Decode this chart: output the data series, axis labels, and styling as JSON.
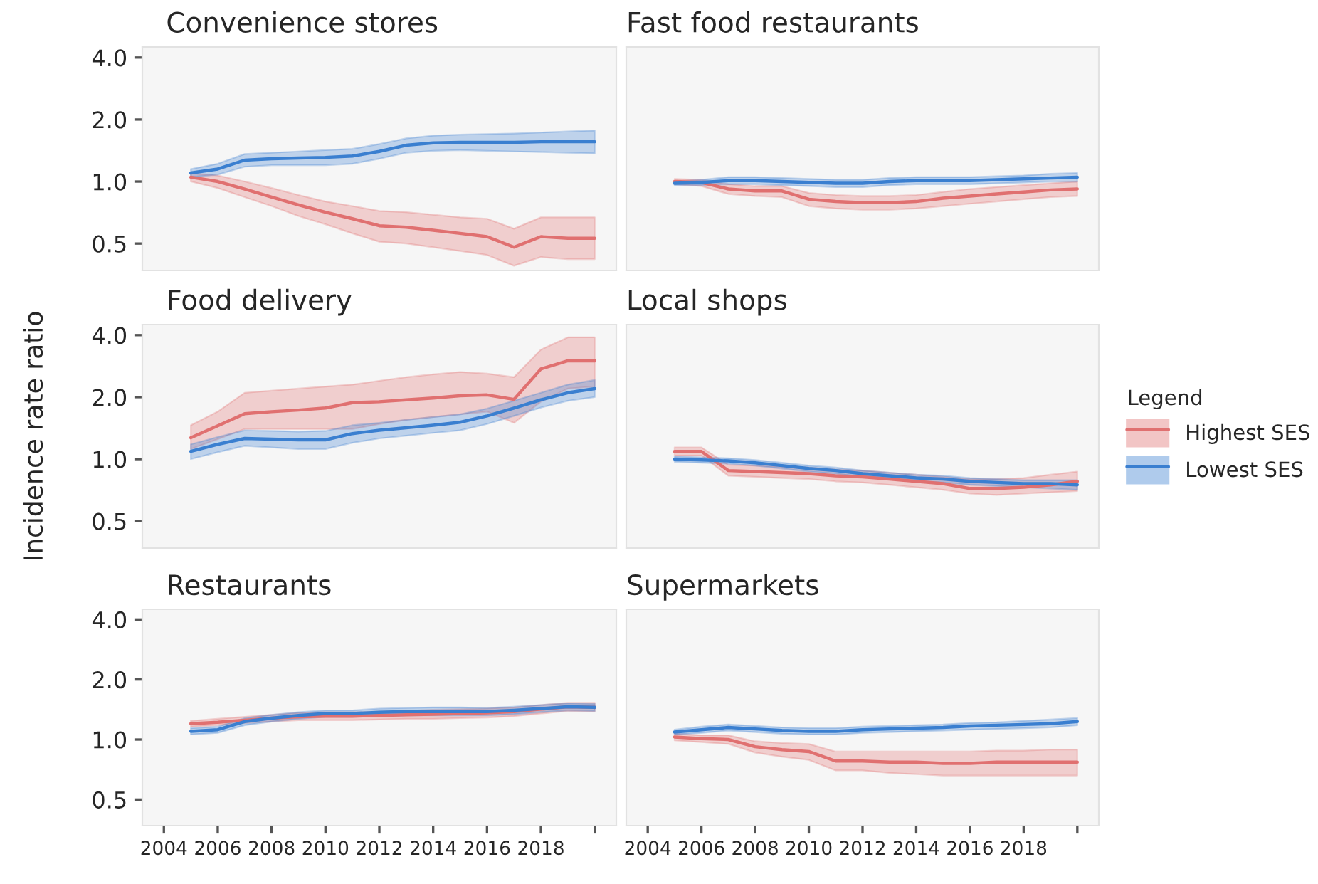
{
  "chart_data": [
    {
      "type": "line",
      "title": "Convenience stores",
      "x": [
        2005,
        2006,
        2007,
        2008,
        2009,
        2010,
        2011,
        2012,
        2013,
        2014,
        2015,
        2016,
        2017,
        2018,
        2019,
        2020
      ],
      "xlim": [
        2003.2,
        2020.8
      ],
      "ylim": [
        0.37,
        4.5
      ],
      "yticks": [
        {
          "value": 0.5,
          "label": "0.5"
        },
        {
          "value": 1,
          "label": "1.0"
        },
        {
          "value": 2,
          "label": "2.0"
        },
        {
          "value": 4,
          "label": "4.0"
        }
      ],
      "log": "y",
      "tick_labels": "y",
      "series": [
        {
          "color": "#e07070",
          "values": [
            1.05,
            1.0,
            0.92,
            0.84,
            0.77,
            0.71,
            0.66,
            0.61,
            0.6,
            0.58,
            0.56,
            0.54,
            0.48,
            0.54,
            0.53,
            0.53
          ],
          "lower": [
            1.0,
            0.93,
            0.84,
            0.76,
            0.68,
            0.62,
            0.56,
            0.51,
            0.5,
            0.48,
            0.46,
            0.44,
            0.39,
            0.43,
            0.42,
            0.42
          ],
          "upper": [
            1.1,
            1.07,
            1.0,
            0.93,
            0.86,
            0.8,
            0.76,
            0.72,
            0.71,
            0.69,
            0.67,
            0.66,
            0.59,
            0.67,
            0.67,
            0.67
          ]
        },
        {
          "color": "#3a7fd0",
          "values": [
            1.1,
            1.15,
            1.27,
            1.29,
            1.3,
            1.31,
            1.33,
            1.4,
            1.5,
            1.54,
            1.55,
            1.55,
            1.55,
            1.56,
            1.56,
            1.56
          ],
          "lower": [
            1.05,
            1.08,
            1.18,
            1.2,
            1.2,
            1.2,
            1.22,
            1.29,
            1.38,
            1.41,
            1.42,
            1.41,
            1.4,
            1.39,
            1.38,
            1.37
          ],
          "upper": [
            1.15,
            1.22,
            1.36,
            1.38,
            1.4,
            1.42,
            1.44,
            1.52,
            1.62,
            1.67,
            1.69,
            1.7,
            1.71,
            1.73,
            1.75,
            1.77
          ]
        }
      ]
    },
    {
      "type": "line",
      "title": "Fast food restaurants",
      "x": [
        2005,
        2006,
        2007,
        2008,
        2009,
        2010,
        2011,
        2012,
        2013,
        2014,
        2015,
        2016,
        2017,
        2018,
        2019,
        2020
      ],
      "xlim": [
        2003.2,
        2020.8
      ],
      "ylim": [
        0.37,
        4.5
      ],
      "log": "y",
      "tick_labels": false,
      "series": [
        {
          "color": "#e07070",
          "values": [
            1.0,
            0.99,
            0.92,
            0.9,
            0.9,
            0.82,
            0.8,
            0.79,
            0.79,
            0.8,
            0.83,
            0.85,
            0.87,
            0.89,
            0.91,
            0.92
          ],
          "lower": [
            0.97,
            0.95,
            0.87,
            0.85,
            0.84,
            0.76,
            0.74,
            0.73,
            0.73,
            0.74,
            0.76,
            0.78,
            0.8,
            0.82,
            0.84,
            0.85
          ],
          "upper": [
            1.03,
            1.02,
            0.97,
            0.95,
            0.95,
            0.88,
            0.86,
            0.85,
            0.85,
            0.86,
            0.89,
            0.92,
            0.94,
            0.96,
            0.98,
            1.0
          ]
        },
        {
          "color": "#3a7fd0",
          "values": [
            0.98,
            0.99,
            1.01,
            1.01,
            1.0,
            0.99,
            0.98,
            0.98,
            1.0,
            1.01,
            1.01,
            1.01,
            1.02,
            1.03,
            1.04,
            1.05
          ],
          "lower": [
            0.96,
            0.96,
            0.97,
            0.97,
            0.96,
            0.95,
            0.94,
            0.94,
            0.96,
            0.97,
            0.97,
            0.97,
            0.98,
            0.99,
            1.0,
            1.0
          ],
          "upper": [
            1.0,
            1.02,
            1.05,
            1.05,
            1.04,
            1.03,
            1.02,
            1.02,
            1.04,
            1.05,
            1.05,
            1.05,
            1.06,
            1.07,
            1.09,
            1.1
          ]
        }
      ]
    },
    {
      "type": "line",
      "title": "Food delivery",
      "ylabel": "Incidence rate ratio",
      "x": [
        2005,
        2006,
        2007,
        2008,
        2009,
        2010,
        2011,
        2012,
        2013,
        2014,
        2015,
        2016,
        2017,
        2018,
        2019,
        2020
      ],
      "xlim": [
        2003.2,
        2020.8
      ],
      "ylim": [
        0.37,
        4.5
      ],
      "yticks": [
        {
          "value": 0.5,
          "label": "0.5"
        },
        {
          "value": 1,
          "label": "1.0"
        },
        {
          "value": 2,
          "label": "2.0"
        },
        {
          "value": 4,
          "label": "4.0"
        }
      ],
      "log": "y",
      "tick_labels": "y",
      "series": [
        {
          "color": "#e07070",
          "values": [
            1.27,
            1.45,
            1.66,
            1.7,
            1.73,
            1.77,
            1.88,
            1.9,
            1.94,
            1.98,
            2.03,
            2.05,
            1.95,
            2.74,
            3.0,
            3.0
          ],
          "lower": [
            1.12,
            1.25,
            1.4,
            1.4,
            1.4,
            1.4,
            1.4,
            1.48,
            1.55,
            1.6,
            1.65,
            1.7,
            1.5,
            1.9,
            2.2,
            2.25
          ],
          "upper": [
            1.46,
            1.7,
            2.1,
            2.15,
            2.2,
            2.25,
            2.3,
            2.4,
            2.5,
            2.58,
            2.65,
            2.6,
            2.5,
            3.4,
            3.9,
            3.9
          ]
        },
        {
          "color": "#3a7fd0",
          "values": [
            1.09,
            1.18,
            1.26,
            1.25,
            1.24,
            1.24,
            1.33,
            1.38,
            1.42,
            1.46,
            1.51,
            1.62,
            1.77,
            1.94,
            2.1,
            2.2
          ],
          "lower": [
            1.0,
            1.08,
            1.16,
            1.14,
            1.12,
            1.12,
            1.2,
            1.26,
            1.3,
            1.34,
            1.38,
            1.48,
            1.62,
            1.78,
            1.92,
            2.0
          ],
          "upper": [
            1.18,
            1.28,
            1.38,
            1.37,
            1.36,
            1.37,
            1.46,
            1.5,
            1.55,
            1.6,
            1.65,
            1.76,
            1.92,
            2.1,
            2.3,
            2.42
          ]
        }
      ]
    },
    {
      "type": "line",
      "title": "Local shops",
      "legend_title": "Legend",
      "legend": "right",
      "x": [
        2005,
        2006,
        2007,
        2008,
        2009,
        2010,
        2011,
        2012,
        2013,
        2014,
        2015,
        2016,
        2017,
        2018,
        2019,
        2020
      ],
      "xlim": [
        2003.2,
        2020.8
      ],
      "ylim": [
        0.37,
        4.5
      ],
      "log": "y",
      "tick_labels": false,
      "series": [
        {
          "name": "Highest SES",
          "color": "#e07070",
          "values": [
            1.09,
            1.09,
            0.88,
            0.87,
            0.86,
            0.85,
            0.83,
            0.82,
            0.8,
            0.78,
            0.76,
            0.72,
            0.72,
            0.73,
            0.75,
            0.78
          ],
          "lower": [
            1.04,
            1.04,
            0.83,
            0.82,
            0.81,
            0.8,
            0.78,
            0.77,
            0.75,
            0.73,
            0.71,
            0.68,
            0.67,
            0.68,
            0.69,
            0.7
          ],
          "upper": [
            1.14,
            1.14,
            0.94,
            0.93,
            0.92,
            0.91,
            0.89,
            0.88,
            0.86,
            0.84,
            0.82,
            0.8,
            0.8,
            0.81,
            0.84,
            0.87
          ]
        },
        {
          "name": "Lowest SES",
          "color": "#3a7fd0",
          "values": [
            1.0,
            0.99,
            0.98,
            0.96,
            0.93,
            0.9,
            0.88,
            0.85,
            0.83,
            0.81,
            0.8,
            0.78,
            0.77,
            0.76,
            0.76,
            0.75
          ],
          "lower": [
            0.97,
            0.96,
            0.95,
            0.93,
            0.9,
            0.87,
            0.85,
            0.82,
            0.8,
            0.78,
            0.77,
            0.75,
            0.74,
            0.73,
            0.72,
            0.71
          ],
          "upper": [
            1.03,
            1.02,
            1.01,
            0.99,
            0.96,
            0.93,
            0.91,
            0.88,
            0.86,
            0.84,
            0.83,
            0.81,
            0.8,
            0.79,
            0.79,
            0.79
          ]
        }
      ]
    },
    {
      "type": "line",
      "title": "Restaurants",
      "x": [
        2005,
        2006,
        2007,
        2008,
        2009,
        2010,
        2011,
        2012,
        2013,
        2014,
        2015,
        2016,
        2017,
        2018,
        2019,
        2020
      ],
      "xlim": [
        2003.2,
        2020.8
      ],
      "xticks": [
        2004,
        2006,
        2008,
        2010,
        2012,
        2014,
        2016,
        2018,
        {
          "value": 2020,
          "label": null
        }
      ],
      "ylim": [
        0.37,
        4.5
      ],
      "yticks": [
        {
          "value": 0.5,
          "label": "0.5"
        },
        {
          "value": 1,
          "label": "1.0"
        },
        {
          "value": 2,
          "label": "2.0"
        },
        {
          "value": 4,
          "label": "4.0"
        }
      ],
      "log": "y",
      "series": [
        {
          "color": "#e07070",
          "values": [
            1.2,
            1.22,
            1.25,
            1.28,
            1.3,
            1.31,
            1.31,
            1.32,
            1.33,
            1.34,
            1.35,
            1.36,
            1.38,
            1.42,
            1.46,
            1.45
          ],
          "lower": [
            1.16,
            1.18,
            1.21,
            1.23,
            1.25,
            1.25,
            1.25,
            1.26,
            1.27,
            1.27,
            1.28,
            1.29,
            1.31,
            1.35,
            1.39,
            1.38
          ],
          "upper": [
            1.24,
            1.27,
            1.3,
            1.33,
            1.36,
            1.37,
            1.37,
            1.38,
            1.39,
            1.41,
            1.42,
            1.43,
            1.45,
            1.49,
            1.53,
            1.53
          ]
        },
        {
          "color": "#3a7fd0",
          "values": [
            1.1,
            1.12,
            1.23,
            1.28,
            1.32,
            1.35,
            1.35,
            1.37,
            1.38,
            1.38,
            1.38,
            1.38,
            1.4,
            1.43,
            1.46,
            1.45
          ],
          "lower": [
            1.06,
            1.08,
            1.18,
            1.23,
            1.27,
            1.3,
            1.3,
            1.31,
            1.32,
            1.32,
            1.32,
            1.32,
            1.34,
            1.37,
            1.4,
            1.39
          ],
          "upper": [
            1.14,
            1.16,
            1.28,
            1.33,
            1.37,
            1.4,
            1.4,
            1.43,
            1.44,
            1.45,
            1.45,
            1.44,
            1.46,
            1.49,
            1.52,
            1.51
          ]
        }
      ]
    },
    {
      "type": "line",
      "title": "Supermarkets",
      "x": [
        2005,
        2006,
        2007,
        2008,
        2009,
        2010,
        2011,
        2012,
        2013,
        2014,
        2015,
        2016,
        2017,
        2018,
        2019,
        2020
      ],
      "xlim": [
        2003.2,
        2020.8
      ],
      "xticks": [
        2004,
        2006,
        2008,
        2010,
        2012,
        2014,
        2016,
        2018,
        {
          "value": 2020,
          "label": null
        }
      ],
      "ylim": [
        0.37,
        4.5
      ],
      "log": "y",
      "tick_labels": "x",
      "series": [
        {
          "color": "#e07070",
          "values": [
            1.03,
            1.01,
            1.0,
            0.92,
            0.89,
            0.87,
            0.78,
            0.78,
            0.77,
            0.77,
            0.76,
            0.76,
            0.77,
            0.77,
            0.77,
            0.77
          ],
          "lower": [
            0.99,
            0.97,
            0.95,
            0.86,
            0.82,
            0.79,
            0.7,
            0.7,
            0.68,
            0.67,
            0.66,
            0.66,
            0.66,
            0.66,
            0.66,
            0.66
          ],
          "upper": [
            1.07,
            1.05,
            1.05,
            0.98,
            0.96,
            0.95,
            0.87,
            0.87,
            0.87,
            0.87,
            0.87,
            0.87,
            0.88,
            0.88,
            0.89,
            0.89
          ]
        },
        {
          "color": "#3a7fd0",
          "values": [
            1.09,
            1.12,
            1.15,
            1.13,
            1.11,
            1.1,
            1.1,
            1.12,
            1.13,
            1.14,
            1.15,
            1.17,
            1.18,
            1.19,
            1.2,
            1.23
          ],
          "lower": [
            1.06,
            1.08,
            1.11,
            1.09,
            1.07,
            1.06,
            1.06,
            1.08,
            1.09,
            1.1,
            1.11,
            1.12,
            1.13,
            1.14,
            1.15,
            1.18
          ],
          "upper": [
            1.12,
            1.16,
            1.19,
            1.17,
            1.15,
            1.14,
            1.14,
            1.16,
            1.17,
            1.18,
            1.19,
            1.21,
            1.22,
            1.24,
            1.26,
            1.28
          ]
        }
      ]
    }
  ]
}
